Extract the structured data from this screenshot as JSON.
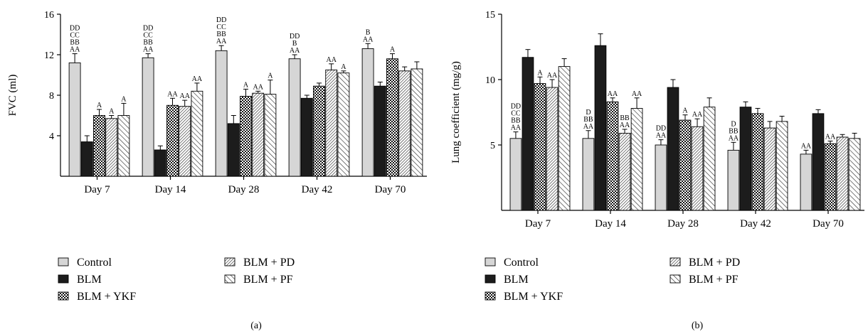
{
  "series_styles": [
    {
      "fill": "#d6d6d6",
      "pattern": "none"
    },
    {
      "fill": "#1c1c1c",
      "pattern": "none"
    },
    {
      "fill": "#ffffff",
      "pattern": "checker"
    },
    {
      "fill": "#ffffff",
      "pattern": "dense-diag"
    },
    {
      "fill": "#ffffff",
      "pattern": "sparse-diag"
    }
  ],
  "chart_data": [
    {
      "type": "bar",
      "panel_label": "(a)",
      "ylabel": "FVC (ml)",
      "ylim": [
        0,
        16
      ],
      "yticks": [
        4,
        8,
        12,
        16
      ],
      "categories": [
        "Day 7",
        "Day 14",
        "Day 28",
        "Day 42",
        "Day 70"
      ],
      "series": [
        {
          "name": "Control",
          "values": [
            11.2,
            11.7,
            12.4,
            11.6,
            12.6
          ],
          "errors": [
            0.9,
            0.4,
            0.5,
            0.4,
            0.5
          ],
          "labels": [
            [
              "DD",
              "CC",
              "BB",
              "AA"
            ],
            [
              "DD",
              "CC",
              "BB",
              "AA"
            ],
            [
              "DD",
              "CC",
              "BB",
              "AA"
            ],
            [
              "DD",
              "B",
              "AA"
            ],
            [
              "B",
              "AA"
            ]
          ]
        },
        {
          "name": "BLM",
          "values": [
            3.4,
            2.6,
            5.2,
            7.7,
            8.9
          ],
          "errors": [
            0.6,
            0.4,
            0.8,
            0.3,
            0.4
          ],
          "labels": [
            [],
            [],
            [],
            [],
            []
          ]
        },
        {
          "name": "BLM + YKF",
          "values": [
            6.0,
            7.0,
            7.9,
            8.9,
            11.6
          ],
          "errors": [
            0.6,
            0.7,
            0.7,
            0.3,
            0.5
          ],
          "labels": [
            [
              "A"
            ],
            [
              "AA"
            ],
            [
              "A"
            ],
            [],
            [
              "A"
            ]
          ]
        },
        {
          "name": "BLM + PD",
          "values": [
            5.7,
            6.9,
            8.2,
            10.5,
            10.4
          ],
          "errors": [
            0.3,
            0.6,
            0.2,
            0.6,
            0.4
          ],
          "labels": [
            [
              "A"
            ],
            [
              "AA"
            ],
            [
              "AA"
            ],
            [
              "AA"
            ],
            []
          ]
        },
        {
          "name": "BLM + PF",
          "values": [
            6.0,
            8.4,
            8.1,
            10.2,
            10.6
          ],
          "errors": [
            1.2,
            0.8,
            1.4,
            0.2,
            0.7
          ],
          "labels": [
            [
              "A"
            ],
            [
              "AA"
            ],
            [
              "A"
            ],
            [
              "A"
            ],
            []
          ]
        }
      ]
    },
    {
      "type": "bar",
      "panel_label": "(b)",
      "ylabel": "Lung coefficient (mg/g)",
      "ylim": [
        0,
        15
      ],
      "yticks": [
        5,
        10,
        15
      ],
      "categories": [
        "Day 7",
        "Day 14",
        "Day 28",
        "Day 42",
        "Day 70"
      ],
      "series": [
        {
          "name": "Control",
          "values": [
            5.5,
            5.5,
            5.0,
            4.6,
            4.3
          ],
          "errors": [
            0.5,
            0.6,
            0.4,
            0.6,
            0.3
          ],
          "labels": [
            [
              "DD",
              "CC",
              "BB",
              "AA"
            ],
            [
              "D",
              "BB",
              "AA"
            ],
            [
              "DD",
              "AA"
            ],
            [
              "D",
              "BB",
              "AA"
            ],
            [
              "AA"
            ]
          ]
        },
        {
          "name": "BLM",
          "values": [
            11.7,
            12.6,
            9.4,
            7.9,
            7.4
          ],
          "errors": [
            0.6,
            0.9,
            0.6,
            0.4,
            0.3
          ],
          "labels": [
            [],
            [],
            [],
            [],
            []
          ]
        },
        {
          "name": "BLM + YKF",
          "values": [
            9.7,
            8.3,
            6.9,
            7.4,
            5.1
          ],
          "errors": [
            0.5,
            0.3,
            0.4,
            0.4,
            0.2
          ],
          "labels": [
            [
              "A"
            ],
            [
              "AA"
            ],
            [
              "A"
            ],
            [],
            [
              "AA"
            ]
          ]
        },
        {
          "name": "BLM + PD",
          "values": [
            9.4,
            5.9,
            6.4,
            6.3,
            5.6
          ],
          "errors": [
            0.6,
            0.3,
            0.6,
            0.5,
            0.2
          ],
          "labels": [
            [
              "AA"
            ],
            [
              "BB",
              "AA"
            ],
            [
              "AA"
            ],
            [],
            []
          ]
        },
        {
          "name": "BLM + PF",
          "values": [
            11.0,
            7.8,
            7.9,
            6.8,
            5.5
          ],
          "errors": [
            0.6,
            0.8,
            0.7,
            0.4,
            0.4
          ],
          "labels": [
            [],
            [
              "AA"
            ],
            [],
            [],
            []
          ]
        }
      ]
    }
  ]
}
